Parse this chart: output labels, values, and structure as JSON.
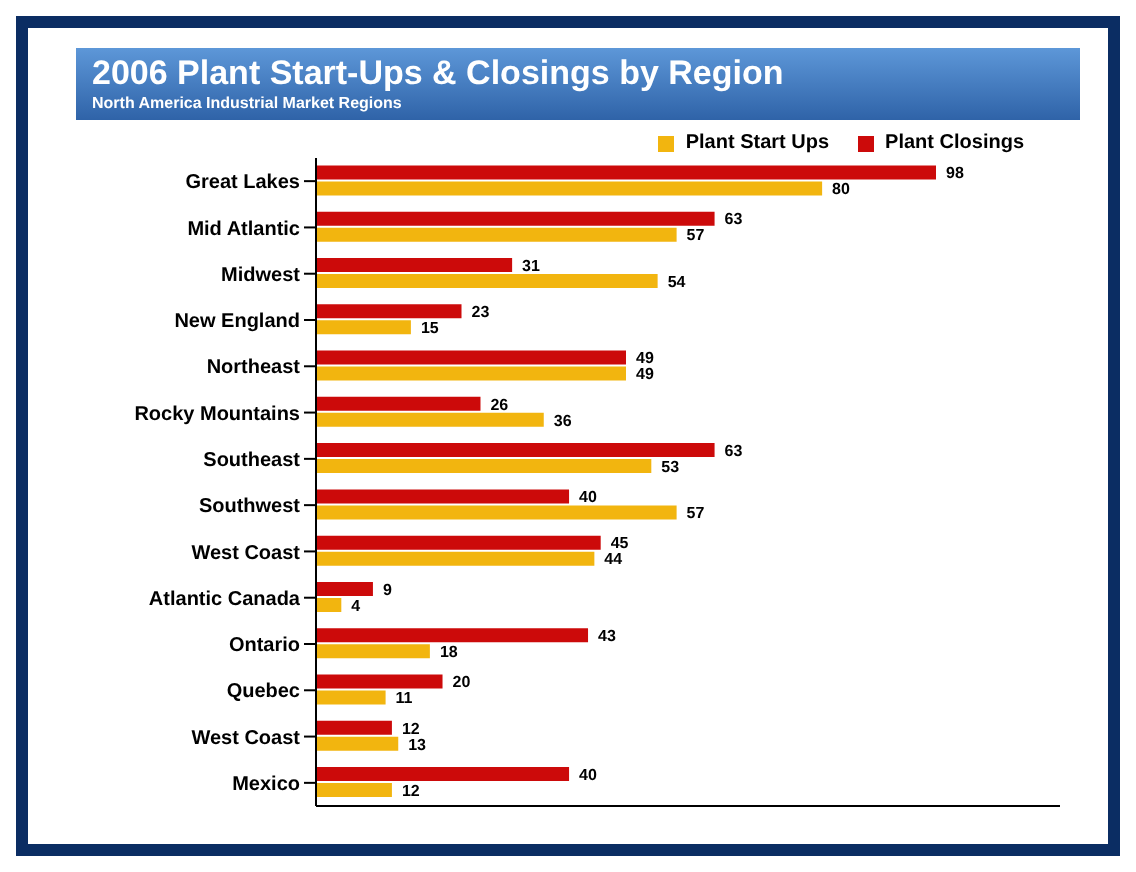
{
  "chart_data": {
    "type": "bar",
    "orientation": "horizontal",
    "title": "2006 Plant Start-Ups & Closings by Region",
    "subtitle": "North America Industrial Market Regions",
    "categories": [
      "Great Lakes",
      "Mid Atlantic",
      "Midwest",
      "New England",
      "Northeast",
      "Rocky Mountains",
      "Southeast",
      "Southwest",
      "West Coast",
      "Atlantic Canada",
      "Ontario",
      "Quebec",
      "West Coast",
      "Mexico"
    ],
    "series": [
      {
        "name": "Plant Start Ups",
        "color": "#f2b50f",
        "values": [
          80,
          57,
          54,
          15,
          49,
          36,
          53,
          57,
          44,
          4,
          18,
          11,
          13,
          12
        ]
      },
      {
        "name": "Plant Closings",
        "color": "#cc0a0a",
        "values": [
          98,
          63,
          31,
          23,
          49,
          26,
          63,
          40,
          45,
          9,
          43,
          20,
          12,
          40
        ]
      }
    ],
    "tick_labels": "y",
    "data_labels": true,
    "legend": "top right"
  }
}
